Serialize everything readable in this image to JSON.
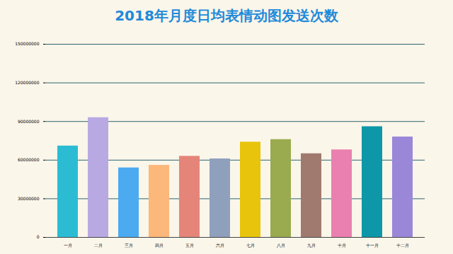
{
  "chart_data": {
    "type": "bar",
    "title": "2018年月度日均表情动图发送次数",
    "categories": [
      "一月",
      "二月",
      "三月",
      "四月",
      "五月",
      "六月",
      "七月",
      "八月",
      "九月",
      "十月",
      "十一月",
      "十二月"
    ],
    "values": [
      71000000,
      93000000,
      54000000,
      56000000,
      63000000,
      61000000,
      74000000,
      76000000,
      65000000,
      68000000,
      86000000,
      78000000
    ],
    "colors": [
      "#2bbcd4",
      "#b9a9e3",
      "#4baaf0",
      "#fcb77a",
      "#e5857a",
      "#8fa0bd",
      "#e8c40c",
      "#9aaa4f",
      "#a07a6e",
      "#ea80b0",
      "#0e97a8",
      "#9b87d8"
    ],
    "ylim": [
      0,
      150000000
    ],
    "yticks": [
      0,
      30000000,
      60000000,
      90000000,
      120000000,
      150000000
    ],
    "grid": true
  }
}
